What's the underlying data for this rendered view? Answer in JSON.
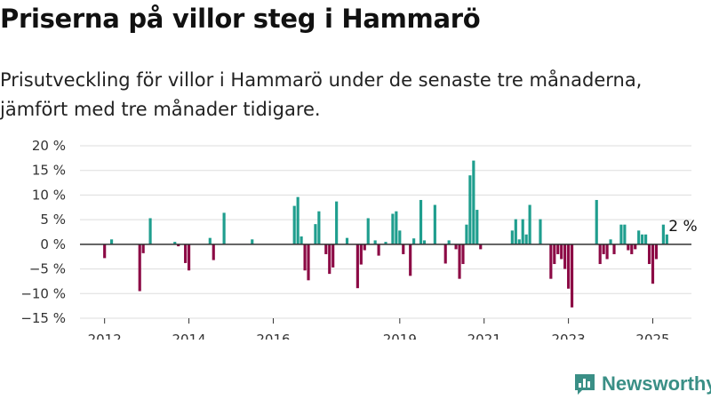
{
  "title": "Priserna på villor steg i Hammarö",
  "subtitle": "Prisutveckling för villor i Hammarö under de senaste tre månaderna, jämfört med tre månader tidigare.",
  "brand": "Newsworthy",
  "colors": {
    "positive": "#1f9e8e",
    "negative": "#8c0a45",
    "grid": "#dddddd",
    "zero": "#333333",
    "brand": "#3a8f86"
  },
  "chart_data": {
    "type": "bar",
    "y_unit": "%",
    "ylim": [
      -15,
      20
    ],
    "y_ticks": [
      20,
      15,
      10,
      5,
      0,
      -5,
      -10,
      -15
    ],
    "y_tick_labels": [
      "20 %",
      "15 %",
      "10 %",
      "5 %",
      "0 %",
      "−5 %",
      "−10 %",
      "−15 %"
    ],
    "x_tick_labels": [
      "2012",
      "2014",
      "2016",
      "2019",
      "2021",
      "2023",
      "2025"
    ],
    "x_range": [
      "2011-06",
      "2025-12"
    ],
    "grid": true,
    "annotation": {
      "text": "2 %",
      "x": "2025-06",
      "value": 2
    },
    "points": [
      [
        "2012-01",
        -2.8
      ],
      [
        "2012-03",
        1.0
      ],
      [
        "2012-09",
        0
      ],
      [
        "2012-11",
        -9.5
      ],
      [
        "2012-12",
        -1.8
      ],
      [
        "2013-02",
        5.3
      ],
      [
        "2013-09",
        0.5
      ],
      [
        "2013-10",
        -0.4
      ],
      [
        "2013-12",
        -3.8
      ],
      [
        "2014-01",
        -5.3
      ],
      [
        "2014-07",
        1.3
      ],
      [
        "2014-08",
        -3.2
      ],
      [
        "2014-11",
        6.4
      ],
      [
        "2015-07",
        1.0
      ],
      [
        "2016-07",
        7.8
      ],
      [
        "2016-08",
        9.6
      ],
      [
        "2016-09",
        1.6
      ],
      [
        "2016-10",
        -5.3
      ],
      [
        "2016-11",
        -7.3
      ],
      [
        "2017-01",
        4.1
      ],
      [
        "2017-02",
        6.7
      ],
      [
        "2017-04",
        -2.0
      ],
      [
        "2017-05",
        -6.0
      ],
      [
        "2017-06",
        -4.7
      ],
      [
        "2017-07",
        8.7
      ],
      [
        "2017-10",
        1.3
      ],
      [
        "2018-01",
        -8.9
      ],
      [
        "2018-02",
        -4.1
      ],
      [
        "2018-03",
        -1.2
      ],
      [
        "2018-04",
        5.3
      ],
      [
        "2018-06",
        0.8
      ],
      [
        "2018-07",
        -2.3
      ],
      [
        "2018-09",
        0.5
      ],
      [
        "2018-11",
        6.2
      ],
      [
        "2018-12",
        6.7
      ],
      [
        "2019-01",
        2.8
      ],
      [
        "2019-02",
        -2.0
      ],
      [
        "2019-04",
        -6.4
      ],
      [
        "2019-05",
        1.2
      ],
      [
        "2019-07",
        9.0
      ],
      [
        "2019-08",
        0.8
      ],
      [
        "2019-11",
        8.0
      ],
      [
        "2020-02",
        -3.9
      ],
      [
        "2020-03",
        0.8
      ],
      [
        "2020-05",
        -1.0
      ],
      [
        "2020-06",
        -7.0
      ],
      [
        "2020-07",
        -4.0
      ],
      [
        "2020-08",
        4.0
      ],
      [
        "2020-09",
        14.0
      ],
      [
        "2020-10",
        17.0
      ],
      [
        "2020-11",
        7.0
      ],
      [
        "2020-12",
        -1.0
      ],
      [
        "2021-09",
        2.8
      ],
      [
        "2021-10",
        5.1
      ],
      [
        "2021-11",
        1.0
      ],
      [
        "2021-12",
        5.1
      ],
      [
        "2022-01",
        2.0
      ],
      [
        "2022-02",
        8.0
      ],
      [
        "2022-05",
        5.1
      ],
      [
        "2022-08",
        -7.0
      ],
      [
        "2022-09",
        -4.0
      ],
      [
        "2022-10",
        -2.0
      ],
      [
        "2022-11",
        -3.0
      ],
      [
        "2022-12",
        -5.0
      ],
      [
        "2023-01",
        -9.0
      ],
      [
        "2023-02",
        -12.8
      ],
      [
        "2023-09",
        9.0
      ],
      [
        "2023-10",
        -4.0
      ],
      [
        "2023-11",
        -2.0
      ],
      [
        "2023-12",
        -3.0
      ],
      [
        "2024-01",
        1.0
      ],
      [
        "2024-02",
        -2.0
      ],
      [
        "2024-04",
        4.0
      ],
      [
        "2024-05",
        4.0
      ],
      [
        "2024-06",
        -1.2
      ],
      [
        "2024-07",
        -2.0
      ],
      [
        "2024-08",
        -1.0
      ],
      [
        "2024-09",
        2.8
      ],
      [
        "2024-10",
        2.0
      ],
      [
        "2024-11",
        2.0
      ],
      [
        "2024-12",
        -4.0
      ],
      [
        "2025-01",
        -8.0
      ],
      [
        "2025-02",
        -3.0
      ],
      [
        "2025-04",
        4.0
      ],
      [
        "2025-05",
        2.0
      ]
    ]
  }
}
